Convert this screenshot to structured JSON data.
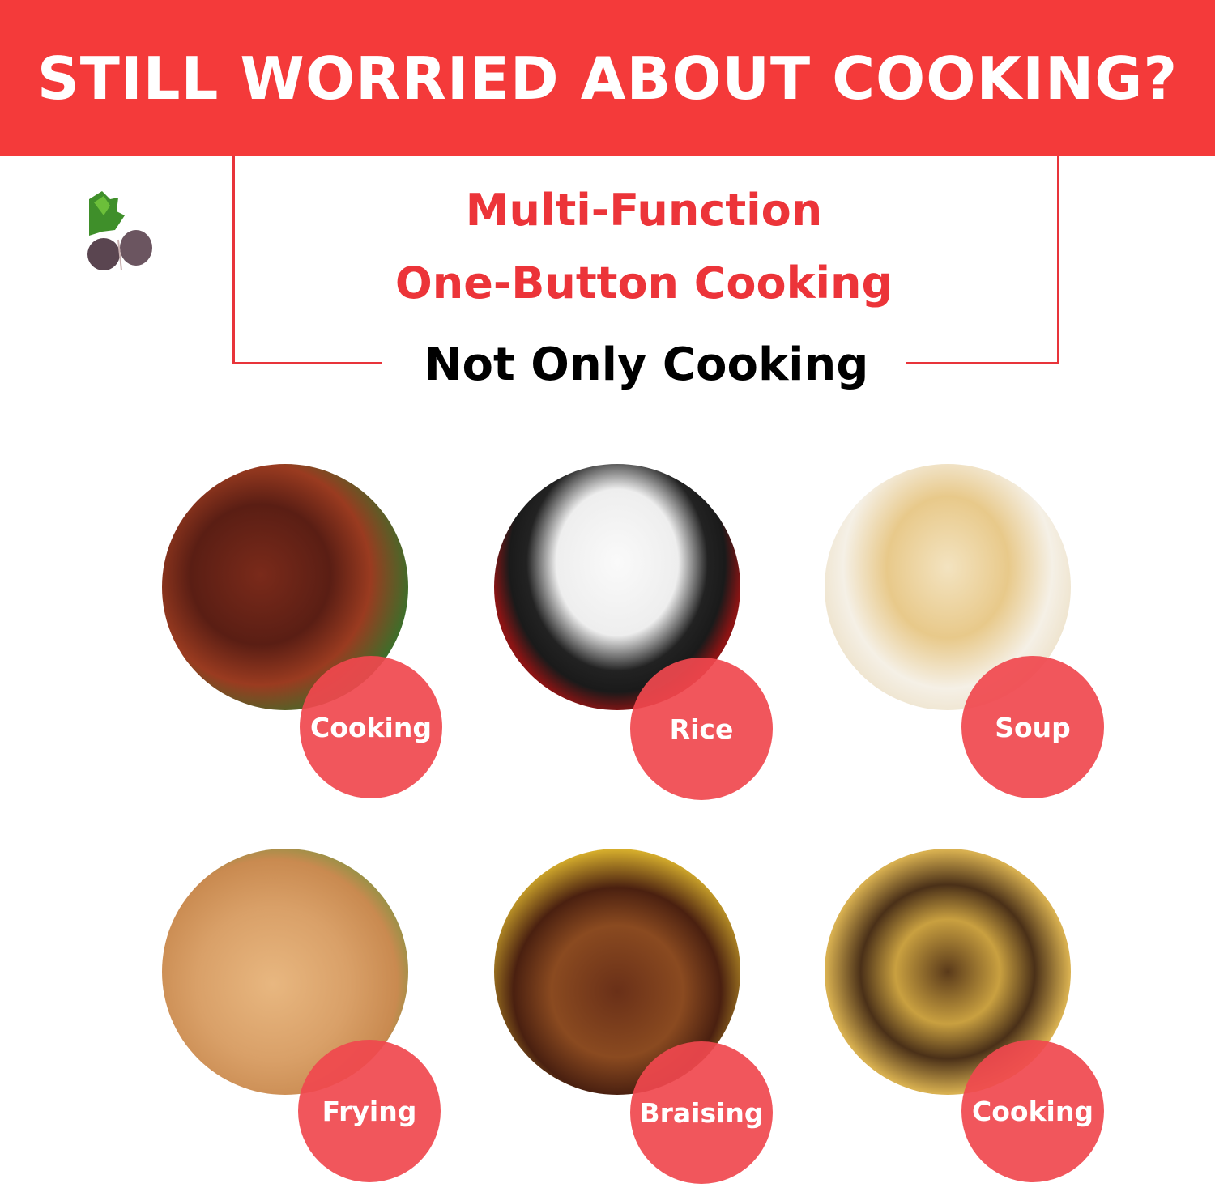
{
  "header": {
    "title": "STILL WORRIED ABOUT COOKING?"
  },
  "headline": {
    "line1": "Multi-Function",
    "line2": "One-Button Cooking",
    "line3": "Not Only Cooking"
  },
  "colors": {
    "brand_red": "#f43a3a",
    "label_red": "#f0484e"
  },
  "functions": [
    {
      "label": "Cooking",
      "image": "stir-fried-beef"
    },
    {
      "label": "Rice",
      "image": "steamed-rice-bowl"
    },
    {
      "label": "Soup",
      "image": "rice-cake-soup"
    },
    {
      "label": "Frying",
      "image": "pan-fried-dumplings"
    },
    {
      "label": "Braising",
      "image": "braised-meat-with-chili"
    },
    {
      "label": "Cooking",
      "image": "stewed-chicken-potato"
    }
  ]
}
